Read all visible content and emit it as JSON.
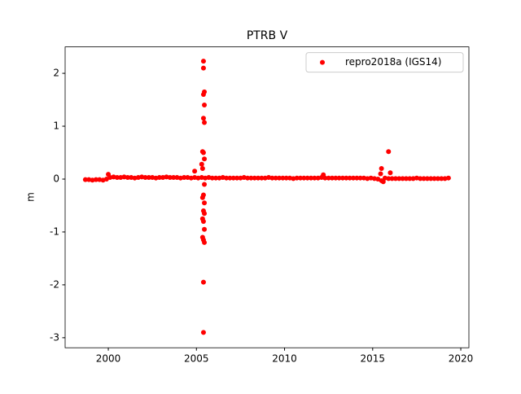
{
  "chart_data": {
    "type": "scatter",
    "title": "PTRB V",
    "y_label": "m",
    "series": [
      {
        "name": "repro2018a (IGS14)",
        "color": "#ff0000",
        "x": [
          1998.7,
          1998.9,
          1999.1,
          1999.3,
          1999.5,
          1999.7,
          1999.9,
          2000.1,
          2000.3,
          2000.5,
          2000.7,
          2000.9,
          2001.1,
          2001.3,
          2001.5,
          2001.7,
          2001.9,
          2002.1,
          2002.3,
          2002.5,
          2002.7,
          2002.9,
          2003.1,
          2003.3,
          2003.5,
          2003.7,
          2003.9,
          2004.1,
          2004.3,
          2004.5,
          2004.7,
          2004.9,
          2005.1,
          2005.3,
          2005.5,
          2005.7,
          2005.9,
          2006.1,
          2006.3,
          2006.5,
          2006.7,
          2006.9,
          2007.1,
          2007.3,
          2007.5,
          2007.7,
          2007.9,
          2008.1,
          2008.3,
          2008.5,
          2008.7,
          2008.9,
          2009.1,
          2009.3,
          2009.5,
          2009.7,
          2009.9,
          2010.1,
          2010.3,
          2010.5,
          2010.7,
          2010.9,
          2011.1,
          2011.3,
          2011.5,
          2011.7,
          2011.9,
          2012.1,
          2012.3,
          2012.5,
          2012.7,
          2012.9,
          2013.1,
          2013.3,
          2013.5,
          2013.7,
          2013.9,
          2014.1,
          2014.3,
          2014.5,
          2014.7,
          2014.9,
          2015.1,
          2015.3,
          2015.5,
          2015.7,
          2015.9,
          2016.1,
          2016.3,
          2016.5,
          2016.7,
          2016.9,
          2017.1,
          2017.3,
          2017.5,
          2017.7,
          2017.9,
          2018.1,
          2018.3,
          2018.5,
          2018.7,
          2018.9,
          2019.1,
          2019.3,
          2000.0,
          2004.9,
          2005.4,
          2005.4,
          2005.45,
          2005.4,
          2005.45,
          2005.4,
          2005.45,
          2005.35,
          2005.4,
          2005.45,
          2005.3,
          2005.35,
          2005.45,
          2005.4,
          2005.35,
          2005.45,
          2005.4,
          2005.45,
          2005.35,
          2005.4,
          2005.45,
          2005.35,
          2005.4,
          2005.45,
          2005.4,
          2005.4,
          2012.2,
          2015.5,
          2015.45,
          2015.9,
          2015.6,
          2016.0
        ],
        "values": [
          -0.01,
          -0.01,
          -0.02,
          -0.01,
          -0.01,
          -0.02,
          0.0,
          0.03,
          0.04,
          0.03,
          0.03,
          0.04,
          0.03,
          0.03,
          0.02,
          0.03,
          0.04,
          0.03,
          0.03,
          0.03,
          0.02,
          0.03,
          0.03,
          0.04,
          0.03,
          0.03,
          0.03,
          0.02,
          0.03,
          0.03,
          0.02,
          0.03,
          0.02,
          0.03,
          0.02,
          0.03,
          0.02,
          0.02,
          0.02,
          0.03,
          0.02,
          0.02,
          0.02,
          0.02,
          0.02,
          0.03,
          0.02,
          0.02,
          0.02,
          0.02,
          0.02,
          0.02,
          0.03,
          0.02,
          0.02,
          0.02,
          0.02,
          0.02,
          0.02,
          0.01,
          0.02,
          0.02,
          0.02,
          0.02,
          0.02,
          0.02,
          0.02,
          0.03,
          0.02,
          0.02,
          0.02,
          0.02,
          0.02,
          0.02,
          0.02,
          0.02,
          0.02,
          0.02,
          0.02,
          0.02,
          0.01,
          0.02,
          0.01,
          0.0,
          -0.03,
          0.02,
          0.01,
          0.01,
          0.01,
          0.01,
          0.01,
          0.01,
          0.01,
          0.01,
          0.02,
          0.01,
          0.01,
          0.01,
          0.01,
          0.01,
          0.01,
          0.01,
          0.01,
          0.02,
          0.09,
          0.15,
          2.23,
          2.1,
          1.65,
          1.6,
          1.4,
          1.15,
          1.07,
          0.52,
          0.5,
          0.38,
          0.28,
          0.2,
          -0.1,
          -0.3,
          -0.35,
          -0.45,
          -0.6,
          -0.65,
          -0.75,
          -0.8,
          -0.95,
          -1.1,
          -1.15,
          -1.2,
          -1.95,
          -2.9,
          0.08,
          0.2,
          0.1,
          0.52,
          -0.05,
          0.12
        ]
      }
    ],
    "xlim": [
      1997.55,
      2020.46
    ],
    "ylim": [
      -3.19,
      2.5
    ],
    "xticks": [
      2000,
      2005,
      2010,
      2015,
      2020
    ],
    "yticks": [
      -3,
      -2,
      -1,
      0,
      1,
      2
    ],
    "legend": "upper right",
    "grid": false
  }
}
